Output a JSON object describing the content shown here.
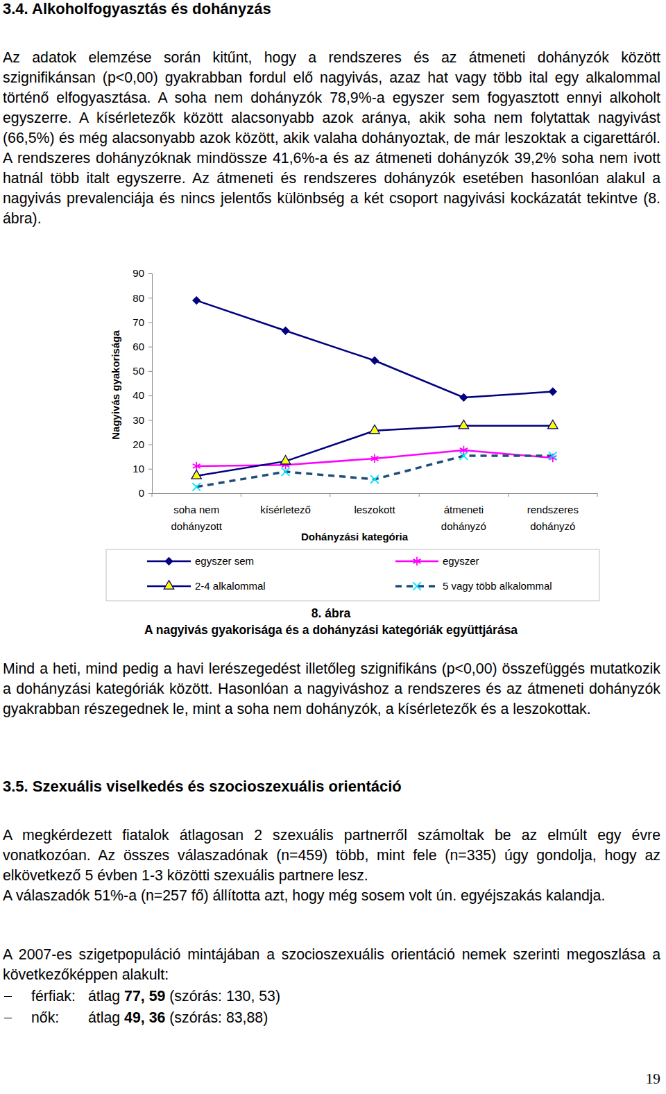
{
  "heading_1": "3.4. Alkoholfogyasztás és dohányzás",
  "paragraphs_1": [
    "Az adatok elemzése során kitűnt, hogy a rendszeres és az átmeneti dohányzók között szignifikánsan (p<0,00) gyakrabban fordul elő nagyivás, azaz hat vagy több ital egy alkalommal történő elfogyasztása. A soha nem dohányzók 78,9%-a egyszer sem fogyasztott ennyi alkoholt egyszerre. A kísérletezők között alacsonyabb azok aránya, akik soha nem folytattak nagyivást (66,5%) és még alacsonyabb azok között, akik valaha dohányoztak, de már leszoktak a cigarettáról. A rendszeres dohányzóknak mindössze 41,6%-a és az átmeneti dohányzók 39,2% soha nem ivott hatnál több italt egyszerre. Az átmeneti és rendszeres dohányzók esetében hasonlóan alakul a nagyivás prevalenciája és nincs jelentős különbség a két csoport nagyivási kockázatát tekintve (8. ábra)."
  ],
  "chart_data": {
    "type": "line",
    "x_label": "Dohányzási kategória",
    "y_label": "Nagyivás gyakorisága",
    "categories": [
      "soha nem\ndohányzott",
      "kísérletező",
      "leszokott",
      "átmeneti\ndohányzó",
      "rendszeres\ndohányzó"
    ],
    "ylim": [
      0,
      90
    ],
    "yticks": [
      0,
      10,
      20,
      30,
      40,
      50,
      60,
      70,
      80,
      90
    ],
    "legend": "bottom",
    "series": [
      {
        "name": "egyszer sem",
        "color": "#000080",
        "marker": "diamond",
        "line_style": "solid",
        "values": [
          78.9,
          66.5,
          54.3,
          39.2,
          41.6
        ]
      },
      {
        "name": "egyszer",
        "color": "#ff00ff",
        "marker": "asterisk",
        "line_style": "solid",
        "values": [
          11.1,
          11.6,
          14.2,
          17.6,
          14.5
        ]
      },
      {
        "name": "2-4 alkalommal",
        "color": "#000080",
        "marker": "triangle",
        "line_style": "solid",
        "values": [
          7.1,
          13.1,
          25.6,
          27.6,
          27.6
        ]
      },
      {
        "name": "5 vagy több alkalommal",
        "color": "#1f4e79",
        "marker": "times",
        "line_style": "dashed",
        "values": [
          2.6,
          8.8,
          5.7,
          15.3,
          15.3
        ]
      }
    ]
  },
  "figure_caption": {
    "number": "8. ábra",
    "text": "A nagyivás gyakorisága és a dohányzási kategóriák együttjárása"
  },
  "paragraphs_2": [
    "Mind a heti, mind pedig a havi lerészegedést illetőleg szignifikáns (p<0,00) összefüggés mutatkozik a dohányzási kategóriák között. Hasonlóan a nagyiváshoz a rendszeres és az átmeneti dohányzók gyakrabban részegednek le, mint a soha nem dohányzók, a kísérletezők és a leszokottak."
  ],
  "heading_2": "3.5. Szexuális viselkedés és szocioszexuális orientáció",
  "paragraphs_3": [
    "A megkérdezett fiatalok átlagosan 2 szexuális partnerről számoltak be az elmúlt egy évre vonatkozóan. Az összes válaszadónak (n=459) több, mint fele (n=335) úgy gondolja, hogy az elkövetkező 5 évben 1-3 közötti szexuális partnere lesz.",
    "A válaszadók 51%-a (n=257 fő) állította azt, hogy még sosem volt ún. egyéjszakás kalandja."
  ],
  "paragraphs_4": [
    "A 2007-es szigetpopuláció mintájában a szocioszexuális orientáció nemek szerinti megoszlása a következőképpen alakult:"
  ],
  "list": [
    {
      "label": "férfiak:",
      "pre": "átlag ",
      "bold": "77, 59",
      "rest": " (szórás: 130, 53)"
    },
    {
      "label": "nők:",
      "pre": "átlag ",
      "bold": "49, 36",
      "rest": " (szórás: 83,88)"
    }
  ],
  "page_number": "19"
}
